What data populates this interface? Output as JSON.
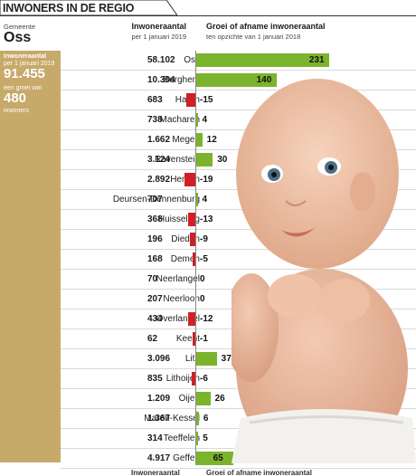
{
  "header": {
    "banner": "INWONERS IN DE REGIO",
    "gemeente_label": "Gemeente",
    "gemeente_name": "Oss",
    "col_inwoners_title": "Inwoneraantal",
    "col_inwoners_sub": "per 1 januari 2019",
    "col_groei_title": "Groei of afname inwoneraantal",
    "col_groei_sub": "ten opzichte van 1 januari 2018"
  },
  "sidebar": {
    "inw_label": "Inwoneraantal",
    "inw_sub": "per 1 januari 2019",
    "inw_value": "91.455",
    "groei_label": "een groei van",
    "groei_value": "480",
    "groei_unit": "inwoners"
  },
  "chart_data": {
    "type": "bar",
    "orientation": "horizontal",
    "categories": [
      "Oss",
      "Berghem",
      "Haren",
      "Macharen",
      "Megen",
      "Ravenstein",
      "Herpen",
      "Deursen-Dennenburg",
      "Huisseling",
      "Dieden",
      "Demen",
      "Neerlangel",
      "Neerloon",
      "Overlangel",
      "Keent",
      "Lith",
      "Lithoijen",
      "Oijen",
      "Maren-Kessel",
      "Teeffelen",
      "Geffen"
    ],
    "inwoners": [
      "58.102",
      "10.304",
      "683",
      "738",
      "1.662",
      "3.124",
      "2.892",
      "707",
      "368",
      "196",
      "168",
      "70",
      "207",
      "434",
      "62",
      "3.096",
      "835",
      "1.209",
      "1.367",
      "314",
      "4.917"
    ],
    "values": [
      231,
      140,
      -15,
      4,
      12,
      30,
      -19,
      4,
      -13,
      -9,
      -5,
      0,
      0,
      -12,
      -1,
      37,
      -6,
      26,
      6,
      5,
      65
    ],
    "colors": {
      "positive": "#7bb42c",
      "negative": "#d21f26"
    }
  },
  "footer": {
    "col_inwoners_title": "Inwoneraantal",
    "col_groei_title": "Groei of afname inwoneraantal"
  }
}
